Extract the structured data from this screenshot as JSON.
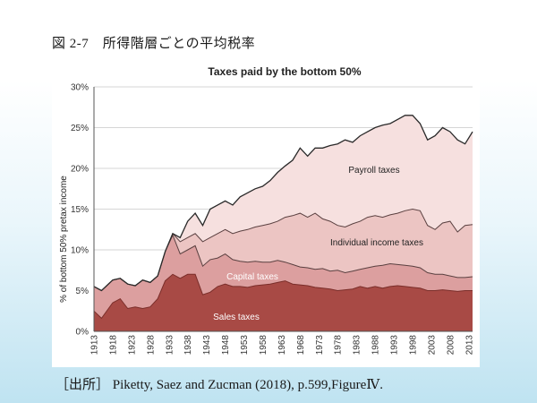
{
  "figure_title": "図 2-7　所得階層ごとの平均税率",
  "source": "［出所］ Piketty, Saez and Zucman (2018), p.599,FigureⅣ.",
  "colors": {
    "sales": "#a84a45",
    "capital": "#dc9f9f",
    "individual": "#ecc5c3",
    "payroll": "#f6e0df",
    "outline": "#2a2a2a"
  },
  "chart_data": {
    "type": "area",
    "stacked": true,
    "title": "Taxes paid by the bottom 50%",
    "xlabel": "",
    "ylabel": "% of bottom 50% pretax income",
    "ylim": [
      0,
      30
    ],
    "xlim": [
      1913,
      2014
    ],
    "yticks": [
      "0%",
      "5%",
      "10%",
      "15%",
      "20%",
      "25%",
      "30%"
    ],
    "xticks": [
      "1913",
      "1918",
      "1923",
      "1928",
      "1933",
      "1938",
      "1943",
      "1948",
      "1953",
      "1958",
      "1963",
      "1968",
      "1973",
      "1978",
      "1983",
      "1988",
      "1993",
      "1998",
      "2003",
      "2008",
      "2013"
    ],
    "grid": "horizontal",
    "x": [
      1913,
      1915,
      1918,
      1920,
      1922,
      1924,
      1926,
      1928,
      1930,
      1932,
      1934,
      1936,
      1938,
      1940,
      1942,
      1944,
      1946,
      1948,
      1950,
      1952,
      1954,
      1956,
      1958,
      1960,
      1962,
      1964,
      1966,
      1968,
      1970,
      1972,
      1974,
      1976,
      1978,
      1980,
      1982,
      1984,
      1986,
      1988,
      1990,
      1992,
      1994,
      1996,
      1998,
      2000,
      2002,
      2004,
      2006,
      2008,
      2010,
      2012,
      2014
    ],
    "series": [
      {
        "name": "Sales taxes",
        "cumulative": [
          2.5,
          1.6,
          3.5,
          4.0,
          2.8,
          3.0,
          2.8,
          3.0,
          4.0,
          6.2,
          7.0,
          6.5,
          7.0,
          7.0,
          4.5,
          4.8,
          5.5,
          5.8,
          5.5,
          5.5,
          5.4,
          5.6,
          5.7,
          5.8,
          6.0,
          6.2,
          5.8,
          5.7,
          5.6,
          5.4,
          5.3,
          5.2,
          5.0,
          5.1,
          5.2,
          5.5,
          5.3,
          5.5,
          5.3,
          5.5,
          5.6,
          5.5,
          5.4,
          5.3,
          5.0,
          5.0,
          5.1,
          5.0,
          4.9,
          5.0,
          5.0
        ]
      },
      {
        "name": "Capital taxes",
        "cumulative": [
          5.5,
          5.0,
          6.3,
          6.5,
          5.8,
          5.6,
          6.3,
          6.0,
          6.8,
          9.8,
          11.8,
          9.5,
          10.0,
          10.5,
          8.0,
          8.8,
          9.0,
          9.5,
          8.8,
          8.6,
          8.5,
          8.6,
          8.5,
          8.5,
          8.7,
          8.5,
          8.2,
          7.9,
          7.8,
          7.6,
          7.7,
          7.4,
          7.5,
          7.2,
          7.4,
          7.6,
          7.8,
          8.0,
          8.1,
          8.3,
          8.2,
          8.1,
          8.0,
          7.8,
          7.2,
          7.0,
          7.0,
          6.8,
          6.6,
          6.6,
          6.7
        ]
      },
      {
        "name": "Individual income taxes",
        "cumulative": [
          5.5,
          5.0,
          6.3,
          6.5,
          5.8,
          5.6,
          6.3,
          6.0,
          6.8,
          9.8,
          12.0,
          11.0,
          11.5,
          12.0,
          11.0,
          11.5,
          12.0,
          12.5,
          12.0,
          12.3,
          12.5,
          12.8,
          13.0,
          13.2,
          13.5,
          14.0,
          14.2,
          14.5,
          14.0,
          14.5,
          13.8,
          13.5,
          13.0,
          12.8,
          13.2,
          13.5,
          14.0,
          14.2,
          14.0,
          14.3,
          14.5,
          14.8,
          15.0,
          14.8,
          13.0,
          12.5,
          13.3,
          13.5,
          12.2,
          13.0,
          13.1
        ]
      },
      {
        "name": "Payroll taxes",
        "cumulative": [
          5.5,
          5.0,
          6.3,
          6.5,
          5.8,
          5.6,
          6.3,
          6.0,
          6.8,
          9.8,
          12.0,
          11.5,
          13.5,
          14.5,
          13.0,
          15.0,
          15.5,
          16.0,
          15.5,
          16.5,
          17.0,
          17.5,
          17.8,
          18.5,
          19.5,
          20.3,
          21.0,
          22.5,
          21.5,
          22.5,
          22.5,
          22.8,
          23.0,
          23.5,
          23.2,
          24.0,
          24.5,
          25.0,
          25.3,
          25.5,
          26.0,
          26.5,
          26.5,
          25.5,
          23.5,
          24.0,
          25.0,
          24.5,
          23.5,
          23.0,
          24.5
        ]
      }
    ]
  }
}
